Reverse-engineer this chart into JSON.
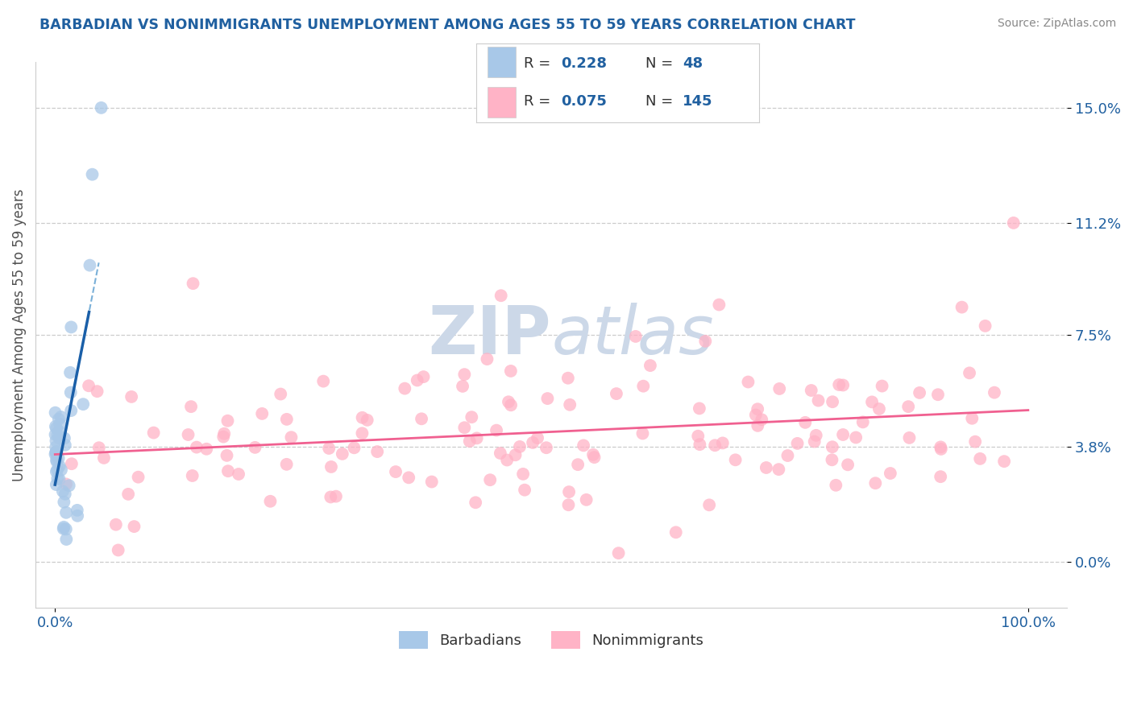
{
  "title": "BARBADIAN VS NONIMMIGRANTS UNEMPLOYMENT AMONG AGES 55 TO 59 YEARS CORRELATION CHART",
  "source": "Source: ZipAtlas.com",
  "ylabel": "Unemployment Among Ages 55 to 59 years",
  "barbadian_color": "#a8c8e8",
  "nonimmigrant_color": "#ffb3c6",
  "barbadian_trend_solid_color": "#1a5fa8",
  "barbadian_trend_dashed_color": "#7ab0d8",
  "nonimmigrant_trend_color": "#f06090",
  "title_color": "#2060a0",
  "tick_label_color": "#2060a0",
  "ylabel_color": "#505050",
  "grid_color": "#cccccc",
  "watermark_color": "#ccd8e8",
  "background_color": "#ffffff",
  "legend_text_color": "#333333",
  "legend_value_color": "#2060a0",
  "legend_border_color": "#cccccc",
  "ytick_vals": [
    0.0,
    3.8,
    7.5,
    11.2,
    15.0
  ],
  "ylim_low": -1.5,
  "ylim_high": 16.5,
  "xlim_low": -2.0,
  "xlim_high": 104.0
}
